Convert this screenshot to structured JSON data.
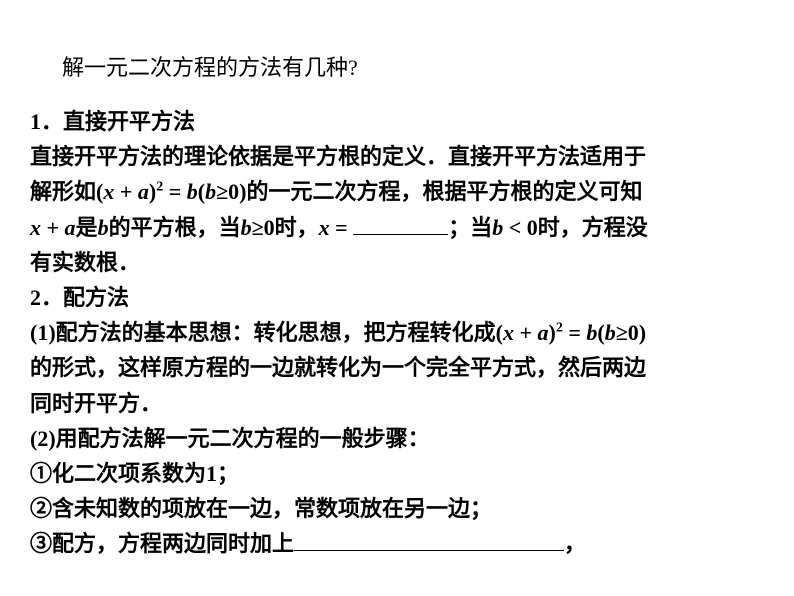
{
  "title": "解一元二次方程的方法有几种?",
  "section1": {
    "heading": "1．直接开平方法",
    "line1a": "直接开平方法的理论依据是平方根的定义．直接开平方法适用于",
    "line1b_pre": "解形如",
    "formula1_prefix": "(",
    "formula1_x": "x",
    "formula1_plus": " + ",
    "formula1_a": "a",
    "formula1_close": ")",
    "formula1_sup": "2",
    "formula1_eq": " = ",
    "formula1_b": "b",
    "formula1_paren_open": "(",
    "formula1_b2": "b",
    "formula1_geq": "≥0)",
    "line1b_post": "的一元二次方程，根据平方根的定义可知",
    "line1c_x": "x",
    "line1c_plus": " + ",
    "line1c_a": "a",
    "line1c_is": "是",
    "line1c_b": "b",
    "line1c_mid": "的平方根，当",
    "line1c_b2": "b",
    "line1c_geq": "≥0",
    "line1c_shi": "时，",
    "line1c_x2": "x",
    "line1c_eq": " = ",
    "line1c_semi": "；当",
    "line1c_b3": "b",
    "line1c_lt": " < 0",
    "line1c_shi2": "时，方程没",
    "line1d": "有实数根．"
  },
  "section2": {
    "heading": "2．配方法",
    "line2a_pre": "(1)配方法的基本思想：转化思想，把方程转化成",
    "formula2_prefix": "(",
    "formula2_x": "x",
    "formula2_plus": " + ",
    "formula2_a": "a",
    "formula2_close": ")",
    "formula2_sup": "2",
    "formula2_eq": " = ",
    "formula2_b": "b",
    "formula2_paren_open": "(",
    "formula2_b2": "b",
    "formula2_geq": "≥0)",
    "line2b": "的形式，这样原方程的一边就转化为一个完全平方式，然后两边",
    "line2c": "同时开平方．",
    "line2d": "(2)用配方法解一元二次方程的一般步骤：",
    "step1": "①化二次项系数为1；",
    "step2": "②含未知数的项放在一边，常数项放在另一边；",
    "step3_pre": "③配方，方程两边同时加上",
    "step3_post": "，"
  },
  "styling": {
    "background_color": "#ffffff",
    "text_color": "#000000",
    "title_fontsize": 22,
    "content_fontsize": 22,
    "line_height": 1.6,
    "font_family_main": "SimSun",
    "font_family_math": "Times New Roman",
    "blank1_width": 95,
    "blank2_width": 270
  }
}
